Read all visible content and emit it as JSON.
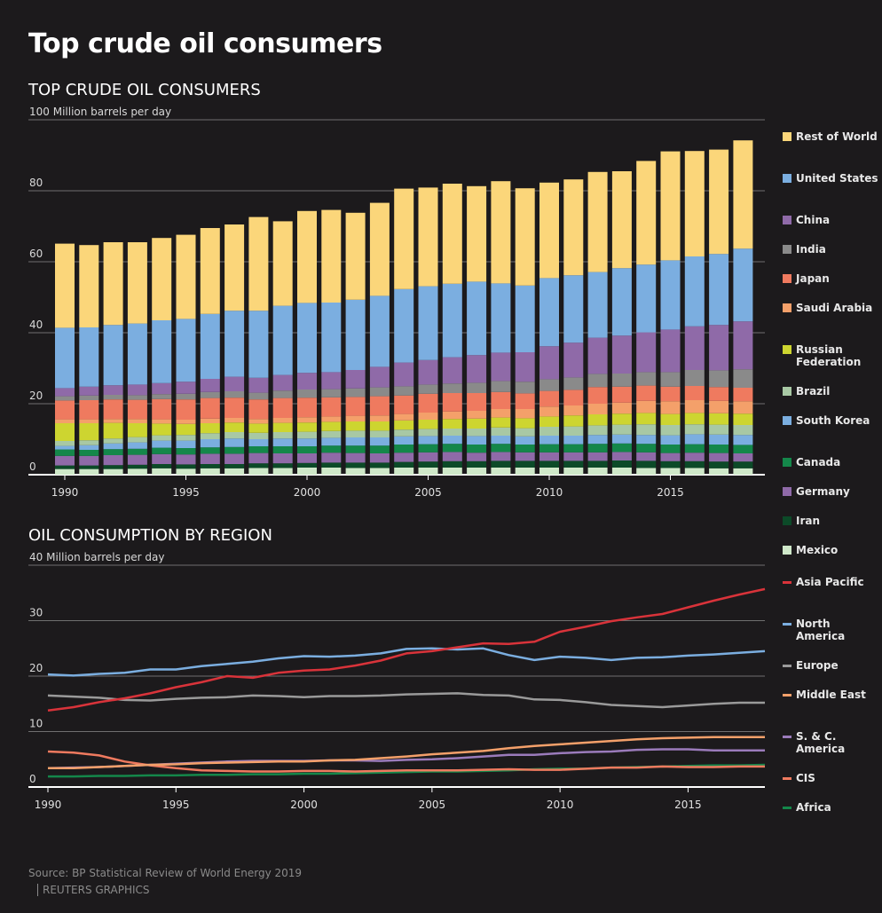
{
  "title": "Top crude oil consumers",
  "source": "Source: BP Statistical Review of World Energy 2019",
  "credit": "REUTERS GRAPHICS",
  "chart_data": [
    {
      "type": "bar",
      "stacked": true,
      "title": "TOP CRUDE OIL CONSUMERS",
      "ylabel": "Million barrels per day",
      "ylim": [
        0,
        100
      ],
      "yticks": [
        0,
        20,
        40,
        60,
        80,
        100
      ],
      "xticks": [
        1990,
        1995,
        2000,
        2005,
        2010,
        2015
      ],
      "grid": true,
      "legend_placement": "right",
      "categories": [
        1990,
        1991,
        1992,
        1993,
        1994,
        1995,
        1996,
        1997,
        1998,
        1999,
        2000,
        2001,
        2002,
        2003,
        2004,
        2005,
        2006,
        2007,
        2008,
        2009,
        2010,
        2011,
        2012,
        2013,
        2014,
        2015,
        2016,
        2017,
        2018
      ],
      "series": [
        {
          "name": "Mexico",
          "color": "#cfe8c9",
          "values": [
            1.6,
            1.6,
            1.6,
            1.7,
            1.8,
            1.7,
            1.8,
            1.8,
            1.9,
            1.9,
            2.0,
            2.0,
            1.9,
            1.9,
            2.0,
            2.0,
            2.0,
            2.0,
            2.0,
            2.0,
            2.0,
            2.0,
            2.0,
            2.0,
            1.9,
            1.9,
            1.9,
            1.8,
            1.8
          ]
        },
        {
          "name": "Iran",
          "color": "#0c4a28",
          "values": [
            1.0,
            1.0,
            1.1,
            1.1,
            1.2,
            1.2,
            1.2,
            1.2,
            1.3,
            1.3,
            1.3,
            1.4,
            1.5,
            1.5,
            1.6,
            1.7,
            1.8,
            1.8,
            1.9,
            1.9,
            1.9,
            1.9,
            1.9,
            2.0,
            2.0,
            1.9,
            1.9,
            1.9,
            1.9
          ]
        },
        {
          "name": "Germany",
          "color": "#8f6aa8",
          "values": [
            2.7,
            2.7,
            2.8,
            2.8,
            2.8,
            2.8,
            2.9,
            2.9,
            2.9,
            2.8,
            2.7,
            2.8,
            2.7,
            2.6,
            2.6,
            2.6,
            2.6,
            2.4,
            2.5,
            2.4,
            2.4,
            2.4,
            2.4,
            2.4,
            2.4,
            2.3,
            2.4,
            2.4,
            2.3
          ]
        },
        {
          "name": "Canada",
          "color": "#14874a",
          "values": [
            1.8,
            1.7,
            1.7,
            1.7,
            1.8,
            1.8,
            1.8,
            1.9,
            1.9,
            2.0,
            2.0,
            2.0,
            2.1,
            2.2,
            2.3,
            2.3,
            2.3,
            2.3,
            2.3,
            2.2,
            2.3,
            2.3,
            2.4,
            2.4,
            2.4,
            2.4,
            2.4,
            2.4,
            2.4
          ]
        },
        {
          "name": "South Korea",
          "color": "#7baee0",
          "values": [
            1.0,
            1.3,
            1.6,
            1.8,
            2.0,
            2.1,
            2.3,
            2.4,
            2.0,
            2.2,
            2.2,
            2.2,
            2.3,
            2.3,
            2.3,
            2.3,
            2.3,
            2.4,
            2.3,
            2.3,
            2.4,
            2.4,
            2.5,
            2.5,
            2.5,
            2.6,
            2.8,
            2.8,
            2.8
          ]
        },
        {
          "name": "Brazil",
          "color": "#a8c8a4",
          "values": [
            1.4,
            1.4,
            1.4,
            1.5,
            1.5,
            1.6,
            1.7,
            1.8,
            1.8,
            1.8,
            1.9,
            1.9,
            1.9,
            1.9,
            1.9,
            2.0,
            2.0,
            2.1,
            2.3,
            2.3,
            2.5,
            2.6,
            2.7,
            2.8,
            3.0,
            2.9,
            2.8,
            2.8,
            2.8
          ]
        },
        {
          "name": "Russian Federation",
          "color": "#cdd530",
          "values": [
            5.0,
            4.8,
            4.4,
            3.9,
            3.3,
            3.1,
            2.8,
            2.7,
            2.6,
            2.6,
            2.6,
            2.6,
            2.6,
            2.6,
            2.6,
            2.6,
            2.7,
            2.8,
            2.8,
            2.8,
            2.9,
            3.1,
            3.1,
            3.1,
            3.2,
            3.1,
            3.2,
            3.2,
            3.2
          ]
        },
        {
          "name": "Saudi Arabia",
          "color": "#f4a06a",
          "values": [
            1.1,
            1.1,
            1.1,
            1.2,
            1.2,
            1.2,
            1.3,
            1.3,
            1.3,
            1.4,
            1.5,
            1.5,
            1.6,
            1.7,
            1.8,
            2.0,
            2.1,
            2.2,
            2.4,
            2.6,
            2.8,
            2.8,
            3.0,
            3.1,
            3.4,
            3.6,
            3.6,
            3.5,
            3.5
          ]
        },
        {
          "name": "Japan",
          "color": "#ef7a5f",
          "values": [
            5.3,
            5.4,
            5.5,
            5.4,
            5.7,
            5.7,
            5.8,
            5.7,
            5.5,
            5.6,
            5.5,
            5.4,
            5.3,
            5.4,
            5.2,
            5.3,
            5.2,
            5.0,
            4.8,
            4.4,
            4.4,
            4.4,
            4.7,
            4.5,
            4.3,
            4.1,
            4.0,
            3.9,
            3.8
          ]
        },
        {
          "name": "India",
          "color": "#8a8a8a",
          "values": [
            1.2,
            1.3,
            1.3,
            1.3,
            1.4,
            1.6,
            1.7,
            1.8,
            1.9,
            2.1,
            2.3,
            2.3,
            2.4,
            2.5,
            2.6,
            2.6,
            2.7,
            2.9,
            3.1,
            3.3,
            3.3,
            3.5,
            3.7,
            3.7,
            3.8,
            4.1,
            4.5,
            4.7,
            5.2
          ]
        },
        {
          "name": "China",
          "color": "#8f6aa8",
          "values": [
            2.3,
            2.5,
            2.7,
            3.0,
            3.1,
            3.4,
            3.7,
            4.1,
            4.2,
            4.4,
            4.7,
            4.8,
            5.2,
            5.8,
            6.7,
            6.9,
            7.4,
            7.8,
            8.0,
            8.3,
            9.3,
            9.8,
            10.2,
            10.7,
            11.2,
            12.0,
            12.3,
            12.8,
            13.5
          ]
        },
        {
          "name": "United States",
          "color": "#7baee0",
          "values": [
            17.0,
            16.7,
            17.0,
            17.2,
            17.7,
            17.7,
            18.3,
            18.6,
            18.9,
            19.5,
            19.7,
            19.6,
            19.8,
            20.0,
            20.7,
            20.8,
            20.7,
            20.7,
            19.5,
            18.8,
            19.2,
            19.0,
            18.5,
            19.0,
            19.1,
            19.5,
            19.7,
            20.0,
            20.5
          ]
        },
        {
          "name": "Rest of World",
          "color": "#fbd67a",
          "values": [
            23.7,
            23.2,
            23.3,
            22.9,
            23.2,
            23.7,
            24.2,
            24.3,
            26.4,
            23.8,
            25.9,
            26.1,
            24.5,
            26.2,
            28.3,
            27.8,
            28.2,
            26.9,
            28.8,
            27.4,
            26.9,
            27.0,
            28.2,
            27.3,
            29.2,
            30.7,
            29.7,
            29.4,
            30.5
          ]
        }
      ]
    },
    {
      "type": "line",
      "title": "OIL CONSUMPTION BY REGION",
      "ylabel": "Million barrels per day",
      "ylim": [
        0,
        40
      ],
      "yticks": [
        0,
        10,
        20,
        30,
        40
      ],
      "xticks": [
        1990,
        1995,
        2000,
        2005,
        2010,
        2015
      ],
      "grid": true,
      "legend_placement": "right",
      "x": [
        1990,
        1991,
        1992,
        1993,
        1994,
        1995,
        1996,
        1997,
        1998,
        1999,
        2000,
        2001,
        2002,
        2003,
        2004,
        2005,
        2006,
        2007,
        2008,
        2009,
        2010,
        2011,
        2012,
        2013,
        2014,
        2015,
        2016,
        2017,
        2018
      ],
      "series": [
        {
          "name": "Asia Pacific",
          "color": "#d9333a",
          "values": [
            13.8,
            14.4,
            15.3,
            16.0,
            16.9,
            18.0,
            18.9,
            20.0,
            19.7,
            20.6,
            21.0,
            21.2,
            21.9,
            22.8,
            24.1,
            24.5,
            25.2,
            25.9,
            25.8,
            26.2,
            28.0,
            28.9,
            29.9,
            30.6,
            31.2,
            32.4,
            33.6,
            34.7,
            35.7
          ]
        },
        {
          "name": "North America",
          "color": "#7baee0",
          "values": [
            20.3,
            20.1,
            20.4,
            20.6,
            21.2,
            21.2,
            21.8,
            22.2,
            22.6,
            23.2,
            23.6,
            23.5,
            23.7,
            24.1,
            24.9,
            25.0,
            24.8,
            25.0,
            23.8,
            22.9,
            23.5,
            23.3,
            22.9,
            23.3,
            23.4,
            23.7,
            23.9,
            24.2,
            24.5
          ]
        },
        {
          "name": "Europe",
          "color": "#9a9a9a",
          "values": [
            16.5,
            16.3,
            16.1,
            15.7,
            15.6,
            15.9,
            16.1,
            16.2,
            16.5,
            16.4,
            16.2,
            16.4,
            16.4,
            16.5,
            16.7,
            16.8,
            16.9,
            16.6,
            16.5,
            15.8,
            15.7,
            15.3,
            14.8,
            14.6,
            14.4,
            14.7,
            15.0,
            15.2,
            15.2
          ]
        },
        {
          "name": "Middle East",
          "color": "#f4a06a",
          "values": [
            3.4,
            3.4,
            3.6,
            3.8,
            4.0,
            4.1,
            4.3,
            4.4,
            4.5,
            4.6,
            4.6,
            4.8,
            4.9,
            5.2,
            5.5,
            5.9,
            6.2,
            6.5,
            7.0,
            7.4,
            7.7,
            8.0,
            8.3,
            8.6,
            8.8,
            8.9,
            9.0,
            9.0,
            9.0
          ]
        },
        {
          "name": "S. & C. America",
          "color": "#9b7bbb",
          "values": [
            3.4,
            3.5,
            3.6,
            3.8,
            4.0,
            4.2,
            4.4,
            4.6,
            4.7,
            4.7,
            4.7,
            4.8,
            4.8,
            4.7,
            4.9,
            5.0,
            5.2,
            5.5,
            5.8,
            5.8,
            6.1,
            6.3,
            6.4,
            6.7,
            6.8,
            6.8,
            6.6,
            6.6,
            6.6
          ]
        },
        {
          "name": "CIS",
          "color": "#ef7a5f",
          "values": [
            6.4,
            6.2,
            5.7,
            4.6,
            3.9,
            3.4,
            3.0,
            2.9,
            2.8,
            2.8,
            2.9,
            2.9,
            2.8,
            2.9,
            3.0,
            3.0,
            3.0,
            3.1,
            3.2,
            3.1,
            3.1,
            3.3,
            3.5,
            3.5,
            3.7,
            3.6,
            3.6,
            3.7,
            3.7
          ]
        },
        {
          "name": "Africa",
          "color": "#14874a",
          "values": [
            1.9,
            1.9,
            2.0,
            2.0,
            2.1,
            2.1,
            2.2,
            2.2,
            2.3,
            2.3,
            2.4,
            2.4,
            2.5,
            2.6,
            2.7,
            2.8,
            2.8,
            2.9,
            3.0,
            3.2,
            3.3,
            3.3,
            3.5,
            3.6,
            3.7,
            3.8,
            3.9,
            3.9,
            4.0
          ]
        }
      ]
    }
  ]
}
